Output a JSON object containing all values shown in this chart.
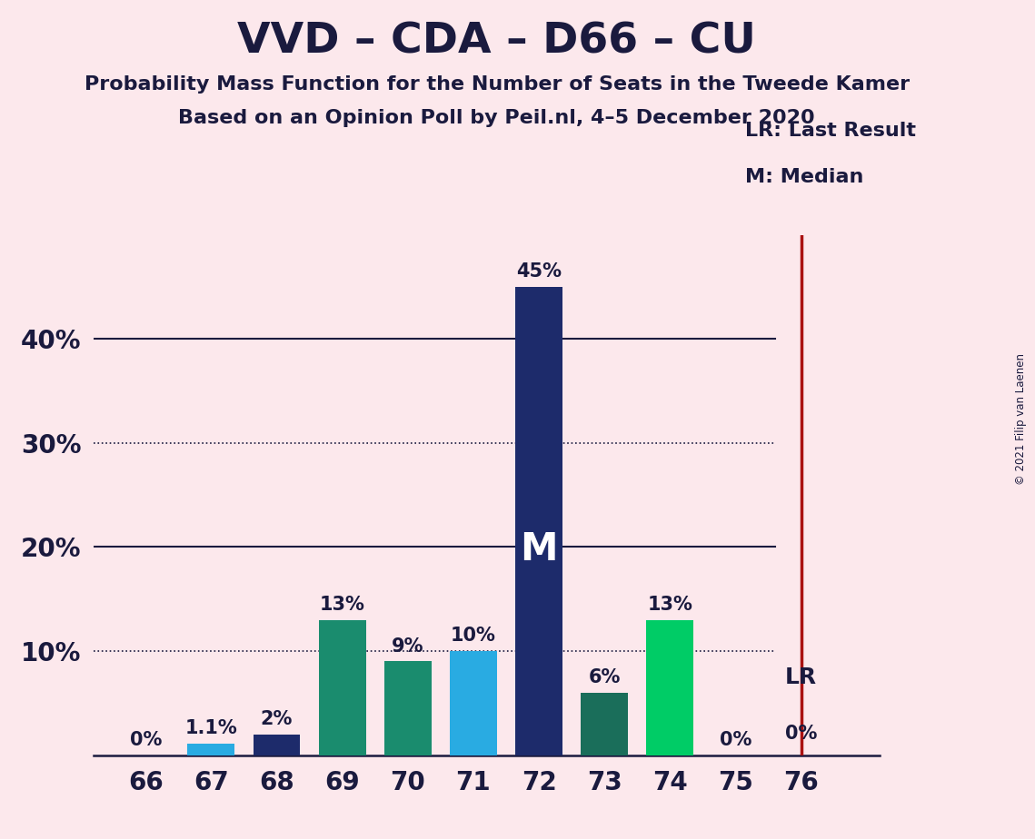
{
  "title": "VVD – CDA – D66 – CU",
  "subtitle1": "Probability Mass Function for the Number of Seats in the Tweede Kamer",
  "subtitle2": "Based on an Opinion Poll by Peil.nl, 4–5 December 2020",
  "copyright": "© 2021 Filip van Laenen",
  "seats": [
    66,
    67,
    68,
    69,
    70,
    71,
    72,
    73,
    74,
    75,
    76
  ],
  "values": [
    0.0,
    1.1,
    2.0,
    13.0,
    9.0,
    10.0,
    45.0,
    6.0,
    13.0,
    0.0,
    0.0
  ],
  "bar_colors": [
    "#fce8ec",
    "#29abe2",
    "#1d2b6b",
    "#1a8c6e",
    "#1a8c6e",
    "#29abe2",
    "#1d2b6b",
    "#1a6e5a",
    "#00cc66",
    "#1a8c6e",
    "#fce8ec"
  ],
  "bar_labels": [
    "0%",
    "1.1%",
    "2%",
    "13%",
    "9%",
    "10%",
    "45%",
    "6%",
    "13%",
    "0%",
    "0%"
  ],
  "median_seat": 72,
  "last_result_seat": 76,
  "background_color": "#fce8ec",
  "ylim": [
    0,
    50
  ],
  "solid_lines": [
    20,
    40
  ],
  "dotted_lines": [
    10,
    30
  ],
  "legend_lr": "LR: Last Result",
  "legend_m": "M: Median",
  "lr_label": "LR",
  "lr_value_label": "0%",
  "median_label": "M",
  "lr_line_color": "#aa1111",
  "text_color": "#1a1a3e",
  "bar_label_color": "#1a1a3e"
}
